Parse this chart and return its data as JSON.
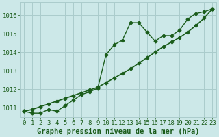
{
  "title": "Graphe pression niveau de la mer (hPa)",
  "bg_color": "#cce8e8",
  "grid_color": "#aacccc",
  "line_color": "#1a5c1a",
  "xlim": [
    -0.5,
    23.5
  ],
  "ylim": [
    1010.5,
    1016.7
  ],
  "yticks": [
    1011,
    1012,
    1013,
    1014,
    1015,
    1016
  ],
  "xticks": [
    0,
    1,
    2,
    3,
    4,
    5,
    6,
    7,
    8,
    9,
    10,
    11,
    12,
    13,
    14,
    15,
    16,
    17,
    18,
    19,
    20,
    21,
    22,
    23
  ],
  "series1_x": [
    0,
    1,
    2,
    3,
    4,
    5,
    6,
    7,
    8,
    9,
    10,
    11,
    12,
    13,
    14,
    15,
    16,
    17,
    18,
    19,
    20,
    21,
    22,
    23
  ],
  "series1_y": [
    1010.8,
    1010.7,
    1010.7,
    1010.9,
    1010.8,
    1011.1,
    1011.4,
    1011.7,
    1011.85,
    1012.05,
    1013.85,
    1014.4,
    1014.65,
    1015.6,
    1015.6,
    1015.1,
    1014.6,
    1014.9,
    1014.9,
    1015.2,
    1015.8,
    1016.1,
    1016.2,
    1016.35
  ],
  "series2_x": [
    0,
    1,
    2,
    3,
    4,
    5,
    6,
    7,
    8,
    9,
    10,
    11,
    12,
    13,
    14,
    15,
    16,
    17,
    18,
    19,
    20,
    21,
    22,
    23
  ],
  "series2_y": [
    1010.8,
    1010.9,
    1011.05,
    1011.2,
    1011.35,
    1011.5,
    1011.65,
    1011.8,
    1011.95,
    1012.1,
    1012.35,
    1012.6,
    1012.85,
    1013.1,
    1013.4,
    1013.7,
    1014.0,
    1014.3,
    1014.55,
    1014.8,
    1015.1,
    1015.45,
    1015.85,
    1016.35
  ],
  "xlabel_fontsize": 7.5,
  "tick_fontsize": 6.5,
  "marker": "D",
  "markersize": 2.5,
  "linewidth1": 1.0,
  "linewidth2": 1.2
}
